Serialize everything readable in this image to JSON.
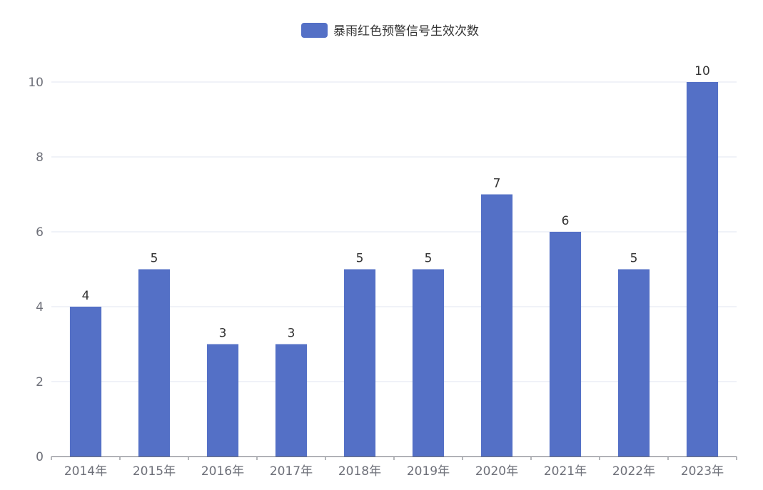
{
  "chart_data": {
    "type": "bar",
    "categories": [
      "2014年",
      "2015年",
      "2016年",
      "2017年",
      "2018年",
      "2019年",
      "2020年",
      "2021年",
      "2022年",
      "2023年"
    ],
    "series": [
      {
        "name": "暴雨红色预警信号生效次数",
        "values": [
          4,
          5,
          3,
          3,
          5,
          5,
          7,
          6,
          5,
          10
        ],
        "color": "#5470c6"
      }
    ],
    "ylim": [
      0,
      10
    ],
    "yticks": [
      0,
      2,
      4,
      6,
      8,
      10
    ],
    "grid": true,
    "legend_position": "top-center",
    "data_labels": true
  }
}
